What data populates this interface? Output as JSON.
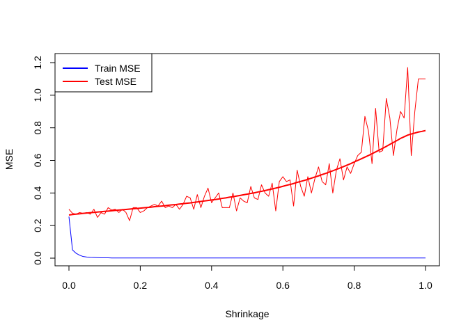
{
  "chart_data": {
    "type": "line",
    "title": "",
    "xlabel": "Shrinkage",
    "ylabel": "MSE",
    "xlim": [
      0.0,
      1.0
    ],
    "ylim": [
      0.0,
      1.2
    ],
    "x_ticks": [
      "0.0",
      "0.2",
      "0.4",
      "0.6",
      "0.8",
      "1.0"
    ],
    "y_ticks": [
      "0.0",
      "0.2",
      "0.4",
      "0.6",
      "0.8",
      "1.0",
      "1.2"
    ],
    "legend_position": "top-left",
    "x": [
      0.0,
      0.01,
      0.02,
      0.03,
      0.04,
      0.05,
      0.06,
      0.07,
      0.08,
      0.09,
      0.1,
      0.11,
      0.12,
      0.13,
      0.14,
      0.15,
      0.16,
      0.17,
      0.18,
      0.19,
      0.2,
      0.21,
      0.22,
      0.23,
      0.24,
      0.25,
      0.26,
      0.27,
      0.28,
      0.29,
      0.3,
      0.31,
      0.32,
      0.33,
      0.34,
      0.35,
      0.36,
      0.37,
      0.38,
      0.39,
      0.4,
      0.41,
      0.42,
      0.43,
      0.44,
      0.45,
      0.46,
      0.47,
      0.48,
      0.49,
      0.5,
      0.51,
      0.52,
      0.53,
      0.54,
      0.55,
      0.56,
      0.57,
      0.58,
      0.59,
      0.6,
      0.61,
      0.62,
      0.63,
      0.64,
      0.65,
      0.66,
      0.67,
      0.68,
      0.69,
      0.7,
      0.71,
      0.72,
      0.73,
      0.74,
      0.75,
      0.76,
      0.77,
      0.78,
      0.79,
      0.8,
      0.81,
      0.82,
      0.83,
      0.84,
      0.85,
      0.86,
      0.87,
      0.88,
      0.89,
      0.9,
      0.91,
      0.92,
      0.93,
      0.94,
      0.95,
      0.96,
      0.97,
      0.98,
      0.99,
      1.0
    ],
    "series": [
      {
        "name": "Train MSE",
        "color": "#0000ff",
        "width": 1,
        "values": [
          0.255,
          0.05,
          0.03,
          0.018,
          0.01,
          0.007,
          0.005,
          0.004,
          0.003,
          0.002,
          0.002,
          0.002,
          0.001,
          0.001,
          0.001,
          0.001,
          0.001,
          0.001,
          0.001,
          0.001,
          0.001,
          0.001,
          0.001,
          0.001,
          0.001,
          0.001,
          0.001,
          0.001,
          0.001,
          0.001,
          0.001,
          0.001,
          0.001,
          0.001,
          0.001,
          0.001,
          0.001,
          0.001,
          0.001,
          0.001,
          0.001,
          0.001,
          0.001,
          0.001,
          0.001,
          0.001,
          0.001,
          0.001,
          0.001,
          0.001,
          0.001,
          0.001,
          0.001,
          0.001,
          0.001,
          0.001,
          0.001,
          0.001,
          0.001,
          0.001,
          0.001,
          0.001,
          0.001,
          0.001,
          0.001,
          0.001,
          0.001,
          0.001,
          0.001,
          0.001,
          0.001,
          0.001,
          0.001,
          0.001,
          0.001,
          0.001,
          0.001,
          0.001,
          0.001,
          0.001,
          0.001,
          0.001,
          0.001,
          0.001,
          0.001,
          0.001,
          0.001,
          0.001,
          0.001,
          0.001,
          0.001,
          0.001,
          0.001,
          0.001,
          0.001,
          0.001,
          0.001,
          0.001,
          0.001,
          0.001,
          0.001
        ]
      },
      {
        "name": "Test MSE",
        "color": "#ff0000",
        "width": 1,
        "values": [
          0.3,
          0.275,
          0.27,
          0.28,
          0.275,
          0.28,
          0.27,
          0.3,
          0.25,
          0.28,
          0.27,
          0.31,
          0.295,
          0.3,
          0.28,
          0.3,
          0.28,
          0.23,
          0.31,
          0.31,
          0.28,
          0.29,
          0.31,
          0.32,
          0.33,
          0.32,
          0.35,
          0.31,
          0.32,
          0.31,
          0.33,
          0.3,
          0.33,
          0.38,
          0.37,
          0.3,
          0.39,
          0.31,
          0.38,
          0.43,
          0.34,
          0.37,
          0.4,
          0.31,
          0.31,
          0.31,
          0.4,
          0.29,
          0.37,
          0.35,
          0.34,
          0.44,
          0.37,
          0.36,
          0.45,
          0.4,
          0.38,
          0.46,
          0.29,
          0.47,
          0.5,
          0.47,
          0.48,
          0.32,
          0.54,
          0.44,
          0.38,
          0.5,
          0.4,
          0.49,
          0.56,
          0.47,
          0.45,
          0.58,
          0.4,
          0.54,
          0.61,
          0.48,
          0.56,
          0.52,
          0.58,
          0.63,
          0.65,
          0.87,
          0.78,
          0.58,
          0.92,
          0.65,
          0.66,
          0.98,
          0.86,
          0.63,
          0.79,
          0.9,
          0.86,
          1.17,
          0.63,
          0.9,
          1.1,
          1.1,
          1.1
        ]
      },
      {
        "name": "",
        "color": "#ff0000",
        "width": 2,
        "smooth": true,
        "values": [
          0.265,
          0.268,
          0.27,
          0.272,
          0.275,
          0.277,
          0.279,
          0.281,
          0.283,
          0.285,
          0.287,
          0.289,
          0.291,
          0.293,
          0.295,
          0.297,
          0.299,
          0.301,
          0.303,
          0.305,
          0.307,
          0.309,
          0.311,
          0.313,
          0.316,
          0.318,
          0.32,
          0.322,
          0.325,
          0.327,
          0.329,
          0.332,
          0.334,
          0.337,
          0.339,
          0.342,
          0.345,
          0.348,
          0.351,
          0.354,
          0.357,
          0.36,
          0.363,
          0.367,
          0.37,
          0.374,
          0.377,
          0.381,
          0.385,
          0.389,
          0.393,
          0.397,
          0.401,
          0.406,
          0.41,
          0.415,
          0.42,
          0.425,
          0.43,
          0.435,
          0.441,
          0.447,
          0.452,
          0.458,
          0.465,
          0.471,
          0.477,
          0.484,
          0.491,
          0.498,
          0.505,
          0.513,
          0.52,
          0.528,
          0.536,
          0.545,
          0.553,
          0.562,
          0.571,
          0.58,
          0.59,
          0.6,
          0.61,
          0.62,
          0.63,
          0.641,
          0.652,
          0.663,
          0.674,
          0.686,
          0.698,
          0.71,
          0.722,
          0.735,
          0.745,
          0.755,
          0.762,
          0.768,
          0.774,
          0.778,
          0.783
        ]
      }
    ],
    "legend": [
      {
        "label": "Train MSE",
        "color": "#0000ff"
      },
      {
        "label": "Test MSE",
        "color": "#ff0000"
      }
    ]
  }
}
